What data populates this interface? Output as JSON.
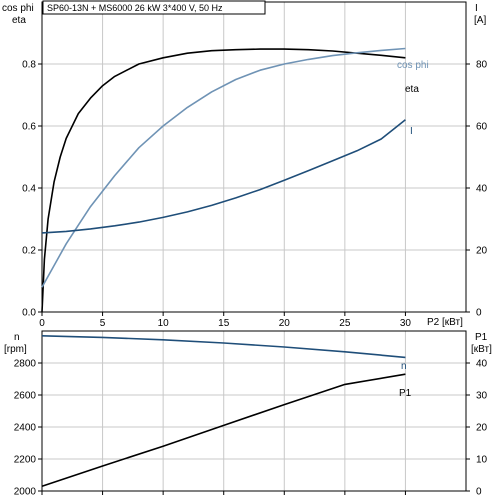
{
  "chart_data": [
    {
      "type": "line",
      "title": "SP60-13N + MS6000   26 kW   3*400 V, 50 Hz",
      "xlabel": "P2 [кВт]",
      "xlim": [
        0,
        35
      ],
      "xticks": [
        0,
        5,
        10,
        15,
        20,
        25,
        30
      ],
      "ylabel_left": [
        "cos phi",
        "eta"
      ],
      "ylim_left": [
        0,
        1.0
      ],
      "yticks_left": [
        0.0,
        0.2,
        0.4,
        0.6,
        0.8
      ],
      "ylabel_right": [
        "I",
        "[A]"
      ],
      "ylim_right": [
        0,
        100
      ],
      "yticks_right": [
        0,
        20,
        40,
        60,
        80
      ],
      "grid": true,
      "series": [
        {
          "name": "eta",
          "axis": "left",
          "color": "#000000",
          "x": [
            0.0,
            0.2,
            0.5,
            1.0,
            1.5,
            2.0,
            3.0,
            4.0,
            5.0,
            6.0,
            7.0,
            8.0,
            10.0,
            12.0,
            14.0,
            16.0,
            18.0,
            20.0,
            22.0,
            24.0,
            26.0,
            28.0,
            30.0
          ],
          "values": [
            0.0,
            0.17,
            0.3,
            0.42,
            0.5,
            0.56,
            0.64,
            0.69,
            0.73,
            0.76,
            0.78,
            0.8,
            0.82,
            0.835,
            0.843,
            0.846,
            0.848,
            0.848,
            0.846,
            0.842,
            0.835,
            0.828,
            0.82
          ]
        },
        {
          "name": "cos phi",
          "axis": "left",
          "color": "#6f93b5",
          "x": [
            0.0,
            1.0,
            2.0,
            3.0,
            4.0,
            5.0,
            6.0,
            8.0,
            10.0,
            12.0,
            14.0,
            16.0,
            18.0,
            20.0,
            22.0,
            24.0,
            26.0,
            28.0,
            30.0
          ],
          "values": [
            0.08,
            0.15,
            0.22,
            0.28,
            0.34,
            0.39,
            0.44,
            0.53,
            0.6,
            0.66,
            0.71,
            0.75,
            0.78,
            0.8,
            0.815,
            0.827,
            0.836,
            0.844,
            0.85
          ]
        },
        {
          "name": "I",
          "axis": "right",
          "color": "#1f4e79",
          "x": [
            0.0,
            2.0,
            4.0,
            6.0,
            8.0,
            10.0,
            12.0,
            14.0,
            16.0,
            18.0,
            20.0,
            22.0,
            24.0,
            26.0,
            28.0,
            30.0
          ],
          "values": [
            25.5,
            26.0,
            26.8,
            27.8,
            29.0,
            30.5,
            32.3,
            34.4,
            36.8,
            39.5,
            42.5,
            45.6,
            48.8,
            52.0,
            55.8,
            62.0
          ]
        }
      ]
    },
    {
      "type": "line",
      "xlim": [
        0,
        35
      ],
      "ylabel_left": [
        "n",
        "[rpm]"
      ],
      "ylim_left": [
        2000,
        3000
      ],
      "yticks_left": [
        2000,
        2200,
        2400,
        2600,
        2800
      ],
      "ylabel_right": [
        "P1",
        "[кВт]"
      ],
      "ylim_right": [
        0,
        50
      ],
      "yticks_right": [
        0,
        10,
        20,
        30,
        40
      ],
      "grid": true,
      "series": [
        {
          "name": "n",
          "axis": "left",
          "color": "#1f4e79",
          "x": [
            0,
            5,
            10,
            15,
            20,
            25,
            30
          ],
          "values": [
            2970,
            2960,
            2945,
            2925,
            2900,
            2870,
            2835
          ]
        },
        {
          "name": "P1",
          "axis": "right",
          "color": "#000000",
          "x": [
            0,
            5,
            10,
            15,
            20,
            25,
            30
          ],
          "values": [
            1.5,
            7.8,
            14.0,
            20.5,
            27.0,
            33.3,
            36.5
          ]
        }
      ]
    }
  ]
}
